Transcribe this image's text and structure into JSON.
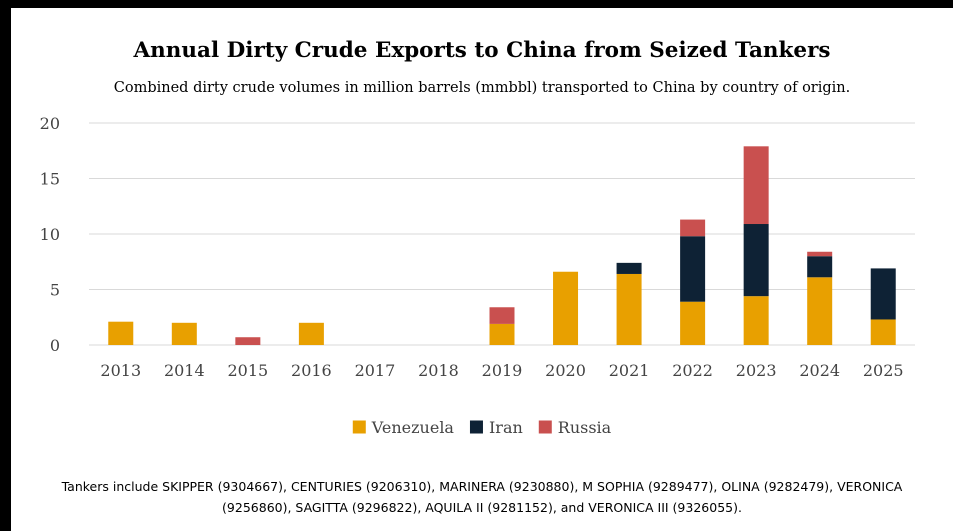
{
  "chart_data": {
    "type": "bar",
    "stacked": true,
    "title": "Annual Dirty Crude Exports to China from Seized Tankers",
    "subtitle": "Combined dirty crude volumes in million barrels (mmbbl) transported to China by country of origin.",
    "xlabel": "",
    "ylabel": "",
    "ylim": [
      0,
      20
    ],
    "yticks": [
      0,
      5,
      10,
      15,
      20
    ],
    "grid": true,
    "legend_position": "bottom",
    "categories": [
      "2013",
      "2014",
      "2015",
      "2016",
      "2017",
      "2018",
      "2019",
      "2020",
      "2021",
      "2022",
      "2023",
      "2024",
      "2025"
    ],
    "series": [
      {
        "name": "Venezuela",
        "color": "#E8A000",
        "values": [
          2.1,
          2.0,
          0,
          2.0,
          0,
          0,
          1.9,
          6.6,
          6.4,
          3.9,
          4.4,
          6.1,
          2.3
        ]
      },
      {
        "name": "Iran",
        "color": "#0E2235",
        "values": [
          0,
          0,
          0,
          0,
          0,
          0,
          0,
          0,
          1.0,
          5.9,
          6.5,
          1.9,
          4.6
        ]
      },
      {
        "name": "Russia",
        "color": "#C9504F",
        "values": [
          0,
          0,
          0.7,
          0,
          0,
          0,
          1.5,
          0,
          0,
          1.5,
          7.0,
          0.4,
          0
        ]
      }
    ]
  },
  "footnote": "Tankers include SKIPPER (9304667), CENTURIES (9206310), MARINERA (9230880), M SOPHIA (9289477), OLINA (9282479), VERONICA (9256860), SAGITTA (9296822), AQUILA II (9281152), and VERONICA III (9326055)."
}
